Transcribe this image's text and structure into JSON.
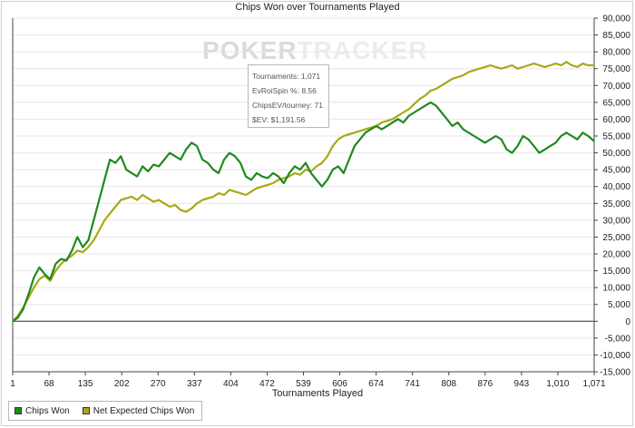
{
  "chart_data": {
    "type": "line",
    "title": "Chips Won over Tournaments Played",
    "xlabel": "Tournaments Played",
    "ylabel": "",
    "xlim": [
      1,
      1071
    ],
    "ylim": [
      -15000,
      90000
    ],
    "x_ticks": [
      "1",
      "68",
      "135",
      "202",
      "270",
      "337",
      "404",
      "472",
      "539",
      "606",
      "674",
      "741",
      "808",
      "876",
      "943",
      "1,010",
      "1,071"
    ],
    "y_ticks": [
      90000,
      85000,
      80000,
      75000,
      70000,
      65000,
      60000,
      55000,
      50000,
      45000,
      40000,
      35000,
      30000,
      25000,
      20000,
      15000,
      10000,
      5000,
      0,
      -5000,
      -10000,
      -15000
    ],
    "y_tick_labels": [
      "90,000",
      "85,000",
      "80,000",
      "75,000",
      "70,000",
      "65,000",
      "60,000",
      "55,000",
      "50,000",
      "45,000",
      "40,000",
      "35,000",
      "30,000",
      "25,000",
      "20,000",
      "15,000",
      "10,000",
      "5,000",
      "0",
      "-5,000",
      "-10,000",
      "-15,000"
    ],
    "grid": "horizontal",
    "legend_position": "bottom-left",
    "series": [
      {
        "name": "Chips Won",
        "color": "#1e8a1e",
        "x": [
          1,
          10,
          20,
          30,
          40,
          50,
          60,
          70,
          80,
          90,
          100,
          110,
          120,
          130,
          140,
          150,
          160,
          170,
          180,
          190,
          200,
          210,
          220,
          230,
          240,
          250,
          260,
          270,
          280,
          290,
          300,
          310,
          320,
          330,
          340,
          350,
          360,
          370,
          380,
          390,
          400,
          410,
          420,
          430,
          440,
          450,
          460,
          470,
          480,
          490,
          500,
          510,
          520,
          530,
          540,
          550,
          560,
          570,
          580,
          590,
          600,
          610,
          620,
          630,
          640,
          650,
          660,
          670,
          680,
          690,
          700,
          710,
          720,
          730,
          740,
          750,
          760,
          770,
          780,
          790,
          800,
          810,
          820,
          830,
          840,
          850,
          860,
          870,
          880,
          890,
          900,
          910,
          920,
          930,
          940,
          950,
          960,
          970,
          980,
          990,
          1000,
          1010,
          1020,
          1030,
          1040,
          1050,
          1060,
          1071
        ],
        "y": [
          0,
          1000,
          3500,
          8000,
          13000,
          16000,
          14000,
          12500,
          17000,
          18500,
          18000,
          21000,
          25000,
          22000,
          24000,
          30000,
          36000,
          42000,
          48000,
          47000,
          49000,
          45000,
          44000,
          43000,
          46000,
          44500,
          46500,
          46000,
          48000,
          50000,
          49000,
          48000,
          51000,
          53000,
          52000,
          48000,
          47000,
          45000,
          44000,
          48000,
          50000,
          49000,
          47000,
          43000,
          42000,
          44000,
          43000,
          42500,
          44000,
          43000,
          41000,
          44000,
          46000,
          45000,
          47000,
          44000,
          42000,
          40000,
          42000,
          45000,
          46000,
          44000,
          48000,
          52000,
          54000,
          56000,
          57000,
          58000,
          57000,
          58000,
          59000,
          60000,
          59000,
          61000,
          62000,
          63000,
          64000,
          65000,
          64000,
          62000,
          60000,
          58000,
          59000,
          57000,
          56000,
          55000,
          54000,
          53000,
          54000,
          55000,
          54000,
          51000,
          50000,
          52000,
          55000,
          54000,
          52000,
          50000,
          51000,
          52000,
          53000,
          55000,
          56000,
          55000,
          54000,
          56000,
          55000,
          53500
        ]
      },
      {
        "name": "Net Expected Chips Won",
        "color": "#a8a816",
        "x": [
          1,
          10,
          20,
          30,
          40,
          50,
          60,
          70,
          80,
          90,
          100,
          110,
          120,
          130,
          140,
          150,
          160,
          170,
          180,
          190,
          200,
          210,
          220,
          230,
          240,
          250,
          260,
          270,
          280,
          290,
          300,
          310,
          320,
          330,
          340,
          350,
          360,
          370,
          380,
          390,
          400,
          410,
          420,
          430,
          440,
          450,
          460,
          470,
          480,
          490,
          500,
          510,
          520,
          530,
          540,
          550,
          560,
          570,
          580,
          590,
          600,
          610,
          620,
          630,
          640,
          650,
          660,
          670,
          680,
          690,
          700,
          710,
          720,
          730,
          740,
          750,
          760,
          770,
          780,
          790,
          800,
          810,
          820,
          830,
          840,
          850,
          860,
          870,
          880,
          890,
          900,
          910,
          920,
          930,
          940,
          950,
          960,
          970,
          980,
          990,
          1000,
          1010,
          1020,
          1030,
          1040,
          1050,
          1060,
          1071
        ],
        "y": [
          0,
          1500,
          4000,
          7000,
          10000,
          12500,
          13500,
          12000,
          15000,
          17000,
          18500,
          19500,
          21000,
          20500,
          22000,
          24000,
          27000,
          30000,
          32000,
          34000,
          36000,
          36500,
          37000,
          36000,
          37500,
          36500,
          35500,
          36000,
          35000,
          34000,
          34500,
          33000,
          32500,
          33500,
          35000,
          36000,
          36500,
          37000,
          38000,
          37500,
          39000,
          38500,
          38000,
          37500,
          38500,
          39500,
          40000,
          40500,
          41000,
          42000,
          42500,
          43000,
          44000,
          43500,
          45000,
          44500,
          46000,
          47000,
          49000,
          52000,
          54000,
          55000,
          55500,
          56000,
          56500,
          57000,
          57500,
          58000,
          59000,
          59500,
          60000,
          61000,
          62000,
          63000,
          64500,
          66000,
          67000,
          68500,
          69000,
          70000,
          71000,
          72000,
          72500,
          73000,
          74000,
          74500,
          75000,
          75500,
          76000,
          75500,
          75000,
          75500,
          76000,
          75000,
          75500,
          76000,
          76500,
          76000,
          75500,
          76000,
          76500,
          76000,
          77000,
          76000,
          75500,
          76500,
          76000,
          76000
        ]
      }
    ]
  },
  "tooltip": {
    "line1": "Tournaments: 1,071",
    "line2": "EvRoiSpin %: 8.56",
    "line3": "ChipsEV/tourney: 71",
    "line4": "$EV: $1,191.56"
  },
  "watermark": {
    "part1": "POKER",
    "part2": "TRACKER"
  }
}
